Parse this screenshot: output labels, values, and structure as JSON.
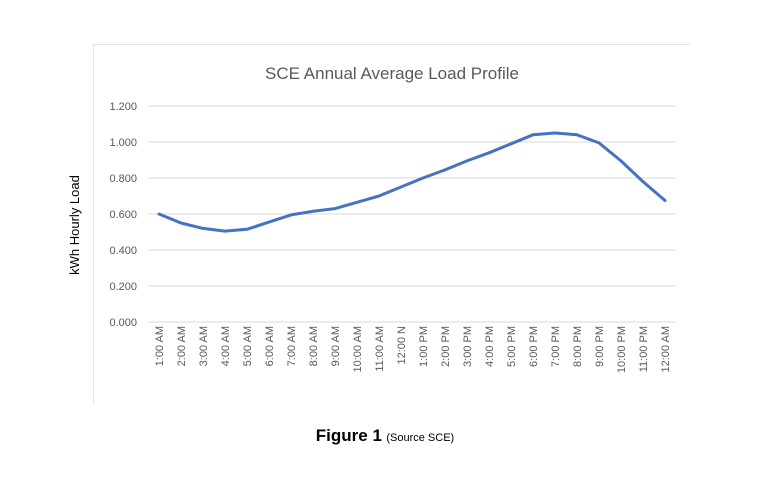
{
  "caption": {
    "figure": "Figure 1",
    "source": "(Source SCE)"
  },
  "chart_data": {
    "type": "line",
    "title": "SCE Annual Average Load Profile",
    "xlabel": "",
    "ylabel": "kWh Hourly Load",
    "ylim": [
      0,
      1.2
    ],
    "yticks": [
      "0.000",
      "0.200",
      "0.400",
      "0.600",
      "0.800",
      "1.000",
      "1.200"
    ],
    "yticks_values": [
      0,
      0.2,
      0.4,
      0.6,
      0.8,
      1.0,
      1.2
    ],
    "grid": true,
    "legend": "none",
    "line_color": "#4472c4",
    "categories": [
      "1:00 AM",
      "2:00 AM",
      "3:00 AM",
      "4:00 AM",
      "5:00 AM",
      "6:00 AM",
      "7:00 AM",
      "8:00 AM",
      "9:00 AM",
      "10:00 AM",
      "11:00 AM",
      "12:00 N",
      "1:00 PM",
      "2:00 PM",
      "3:00 PM",
      "4:00 PM",
      "5:00 PM",
      "6:00 PM",
      "7:00 PM",
      "8:00 PM",
      "9:00 PM",
      "10:00 PM",
      "11:00 PM",
      "12:00 AM"
    ],
    "values": [
      0.6,
      0.55,
      0.52,
      0.505,
      0.515,
      0.555,
      0.595,
      0.615,
      0.63,
      0.665,
      0.7,
      0.75,
      0.8,
      0.845,
      0.895,
      0.94,
      0.99,
      1.04,
      1.05,
      1.04,
      0.995,
      0.895,
      0.78,
      0.675
    ]
  }
}
